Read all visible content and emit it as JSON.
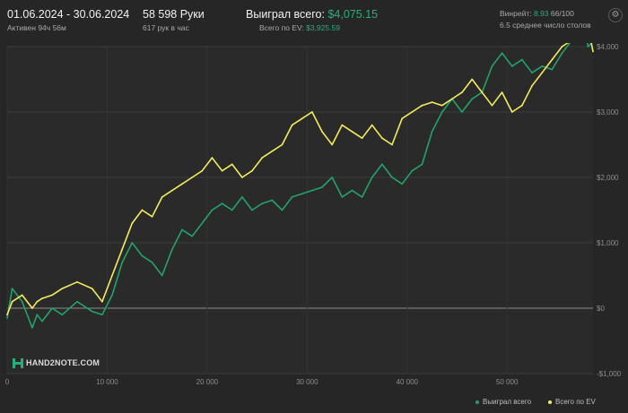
{
  "header": {
    "date_range": "01.06.2024 - 30.06.2024",
    "active": "Активен 94ч 56м",
    "hands": "58 598 Руки",
    "hands_per_hour": "617 рук в час",
    "won_label": "Выиграл всего:",
    "won_value": "$4,075.15",
    "ev_label": "Всего по EV:",
    "ev_value": "$3,925.59",
    "winrate_label": "Винрейт:",
    "winrate_value": "8.93",
    "winrate_suffix": "66/100",
    "tables": "6.5 среднее число столов"
  },
  "logo_text": "HAND2NOTE.COM",
  "colors": {
    "background": "#262626",
    "won": "#22a36a",
    "ev": "#f3ec5b",
    "accent_green": "#27b07a"
  },
  "chart_data": {
    "type": "line",
    "x_ticks": [
      0,
      10000,
      20000,
      30000,
      40000,
      50000
    ],
    "x_tick_labels": [
      "0",
      "10 000",
      "20 000",
      "30 000",
      "40 000",
      "50 000"
    ],
    "y_ticks": [
      -1000,
      0,
      1000,
      2000,
      3000,
      4000
    ],
    "y_tick_labels": [
      "-$1,000",
      "$0",
      "$1,000",
      "$2,000",
      "$3,000",
      "$4,000"
    ],
    "xlim": [
      0,
      58598
    ],
    "ylim": [
      -1000,
      4000
    ],
    "grid": true,
    "legend": "bottom-right",
    "series": [
      {
        "name": "Выиграл всего",
        "x": [
          0,
          500,
          1500,
          2500,
          3000,
          3500,
          4500,
          5500,
          7000,
          8500,
          9500,
          10500,
          11500,
          12500,
          13500,
          14500,
          15500,
          16500,
          17500,
          18500,
          19500,
          20500,
          21500,
          22500,
          23500,
          24500,
          25500,
          26500,
          27500,
          28500,
          29500,
          30500,
          31500,
          32500,
          33500,
          34500,
          35500,
          36500,
          37500,
          38500,
          39500,
          40500,
          41500,
          42500,
          43500,
          44500,
          45500,
          46500,
          47500,
          48500,
          49500,
          50500,
          51500,
          52500,
          53500,
          54500,
          55500,
          56500,
          57000,
          57600,
          58100,
          58598
        ],
        "y": [
          -150,
          300,
          100,
          -300,
          -100,
          -200,
          0,
          -100,
          100,
          -50,
          -100,
          200,
          700,
          1000,
          800,
          700,
          500,
          900,
          1200,
          1100,
          1300,
          1500,
          1600,
          1500,
          1700,
          1500,
          1600,
          1650,
          1500,
          1700,
          1750,
          1800,
          1850,
          2000,
          1700,
          1800,
          1700,
          2000,
          2200,
          2000,
          1900,
          2100,
          2200,
          2700,
          3000,
          3200,
          3000,
          3200,
          3300,
          3700,
          3900,
          3700,
          3800,
          3600,
          3700,
          3650,
          3900,
          4100,
          4200,
          4400,
          4000,
          4075
        ]
      },
      {
        "name": "Всего по EV",
        "x": [
          0,
          500,
          1500,
          2500,
          3000,
          3500,
          4500,
          5500,
          7000,
          8500,
          9500,
          10500,
          11500,
          12500,
          13500,
          14500,
          15500,
          16500,
          17500,
          18500,
          19500,
          20500,
          21500,
          22500,
          23500,
          24500,
          25500,
          26500,
          27500,
          28500,
          29500,
          30500,
          31500,
          32500,
          33500,
          34500,
          35500,
          36500,
          37500,
          38500,
          39500,
          40500,
          41500,
          42500,
          43500,
          44500,
          45500,
          46500,
          47500,
          48500,
          49500,
          50500,
          51500,
          52500,
          53500,
          54500,
          55500,
          56500,
          57000,
          57600,
          58100,
          58598
        ],
        "y": [
          -100,
          100,
          200,
          0,
          100,
          150,
          200,
          300,
          400,
          300,
          100,
          500,
          900,
          1300,
          1500,
          1400,
          1700,
          1800,
          1900,
          2000,
          2100,
          2300,
          2100,
          2200,
          2000,
          2100,
          2300,
          2400,
          2500,
          2800,
          2900,
          3000,
          2700,
          2500,
          2800,
          2700,
          2600,
          2800,
          2600,
          2500,
          2900,
          3000,
          3100,
          3150,
          3100,
          3200,
          3300,
          3500,
          3300,
          3100,
          3300,
          3000,
          3100,
          3400,
          3600,
          3800,
          4000,
          4100,
          4200,
          4500,
          4300,
          3925
        ]
      }
    ]
  }
}
